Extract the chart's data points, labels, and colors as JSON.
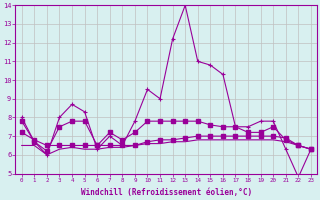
{
  "x": [
    0,
    1,
    2,
    3,
    4,
    5,
    6,
    7,
    8,
    9,
    10,
    11,
    12,
    13,
    14,
    15,
    16,
    17,
    18,
    19,
    20,
    21,
    22,
    23
  ],
  "line1": [
    8.0,
    6.7,
    6.0,
    8.0,
    8.7,
    8.3,
    6.3,
    7.0,
    6.5,
    7.8,
    9.5,
    9.0,
    12.2,
    14.0,
    11.0,
    10.8,
    10.3,
    7.5,
    7.5,
    7.8,
    7.8,
    6.3,
    4.8,
    6.3
  ],
  "line2": [
    7.8,
    6.7,
    6.2,
    7.5,
    7.8,
    7.8,
    6.5,
    7.2,
    6.8,
    7.2,
    7.8,
    7.8,
    7.8,
    7.8,
    7.8,
    7.6,
    7.5,
    7.5,
    7.2,
    7.2,
    7.5,
    6.8,
    6.5,
    6.3
  ],
  "line3": [
    7.2,
    6.8,
    6.5,
    6.5,
    6.5,
    6.5,
    6.5,
    6.5,
    6.5,
    6.5,
    6.7,
    6.8,
    6.8,
    6.9,
    7.0,
    7.0,
    7.0,
    7.0,
    7.0,
    7.0,
    7.0,
    6.9,
    6.5,
    6.3
  ],
  "line4": [
    6.5,
    6.5,
    6.0,
    6.3,
    6.4,
    6.3,
    6.3,
    6.4,
    6.4,
    6.5,
    6.6,
    6.6,
    6.7,
    6.7,
    6.8,
    6.8,
    6.8,
    6.8,
    6.8,
    6.8,
    6.8,
    6.7,
    6.5,
    6.3
  ],
  "line_color": "#990099",
  "bg_color": "#d8f0f0",
  "grid_color": "#c0c0c0",
  "xlabel": "Windchill (Refroidissement éolien,°C)",
  "ylim": [
    5,
    14
  ],
  "xlim": [
    0,
    23
  ]
}
